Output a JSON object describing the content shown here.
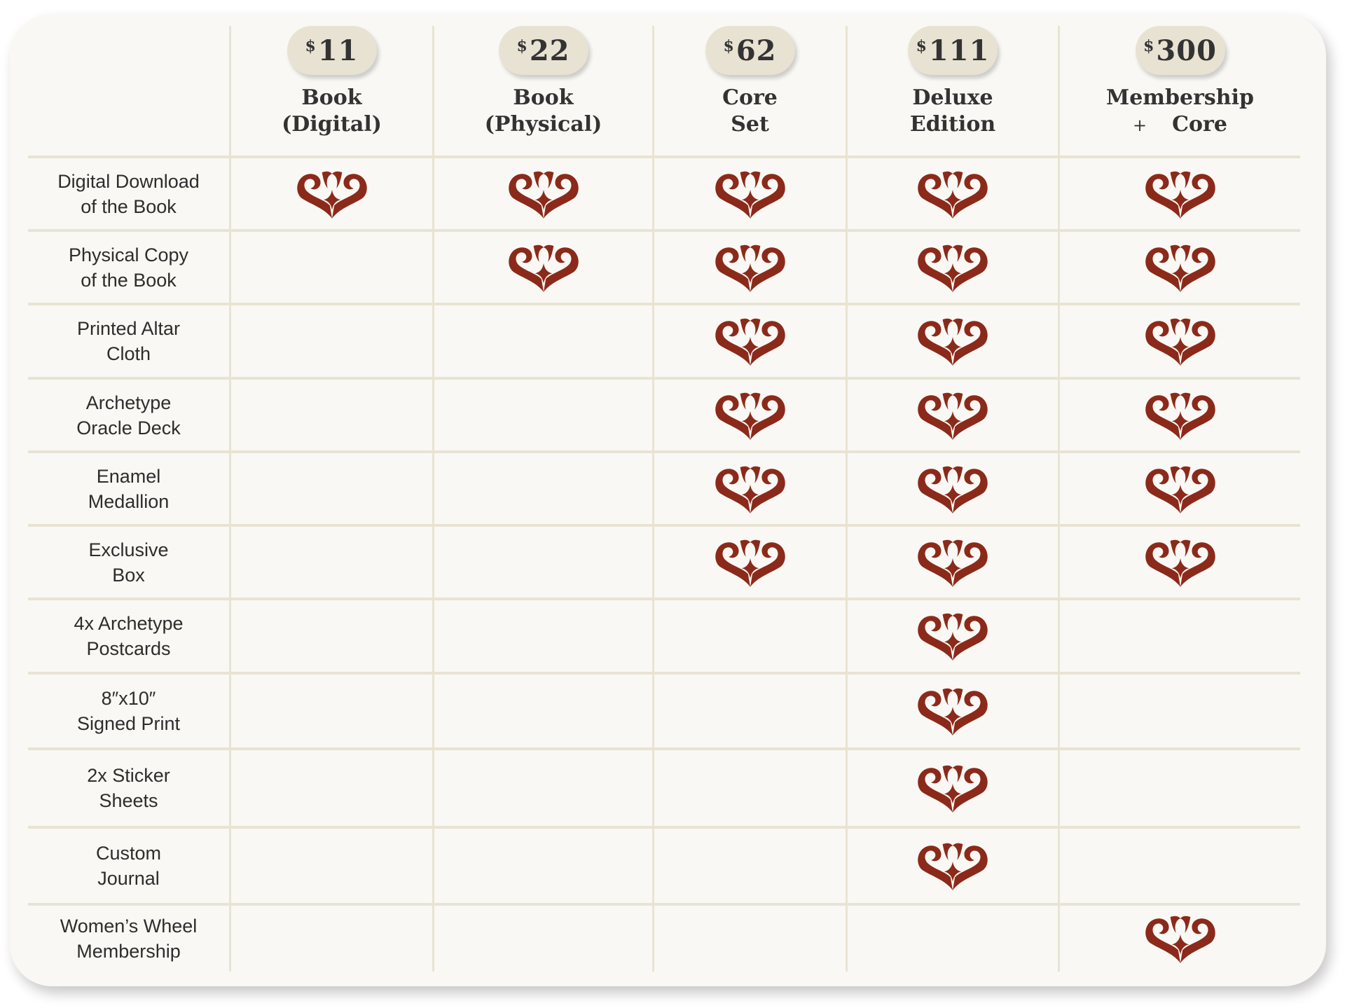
{
  "currency_symbol": "$",
  "colors": {
    "accent": "#8b2a1a",
    "pill": "#e8e2d3",
    "grid_line": "#e9e3d3",
    "card": "#f9f8f4",
    "text": "#333333"
  },
  "check_icon": "ornamental-heart-star-icon",
  "tiers": [
    {
      "price": "11",
      "title": "Book\n(Digital)"
    },
    {
      "price": "22",
      "title": "Book\n(Physical)"
    },
    {
      "price": "62",
      "title": "Core\nSet"
    },
    {
      "price": "111",
      "title": "Deluxe\nEdition"
    },
    {
      "price": "300",
      "title_line1": "Membership",
      "title_plus": "+",
      "title_line2": "Core"
    }
  ],
  "features": [
    {
      "label": "Digital Download\nof the Book",
      "included": [
        true,
        true,
        true,
        true,
        true
      ]
    },
    {
      "label": "Physical Copy\nof the Book",
      "included": [
        false,
        true,
        true,
        true,
        true
      ]
    },
    {
      "label": "Printed Altar\nCloth",
      "included": [
        false,
        false,
        true,
        true,
        true
      ]
    },
    {
      "label": "Archetype\nOracle Deck",
      "included": [
        false,
        false,
        true,
        true,
        true
      ]
    },
    {
      "label": "Enamel\nMedallion",
      "included": [
        false,
        false,
        true,
        true,
        true
      ]
    },
    {
      "label": "Exclusive\nBox",
      "included": [
        false,
        false,
        true,
        true,
        true
      ]
    },
    {
      "label": "4x Archetype\nPostcards",
      "included": [
        false,
        false,
        false,
        true,
        false
      ]
    },
    {
      "label": "8″x10″\nSigned Print",
      "included": [
        false,
        false,
        false,
        true,
        false
      ]
    },
    {
      "label": "2x Sticker\nSheets",
      "included": [
        false,
        false,
        false,
        true,
        false
      ]
    },
    {
      "label": "Custom\nJournal",
      "included": [
        false,
        false,
        false,
        true,
        false
      ]
    },
    {
      "label": "Women’s Wheel\nMembership",
      "included": [
        false,
        false,
        false,
        false,
        true
      ]
    }
  ]
}
